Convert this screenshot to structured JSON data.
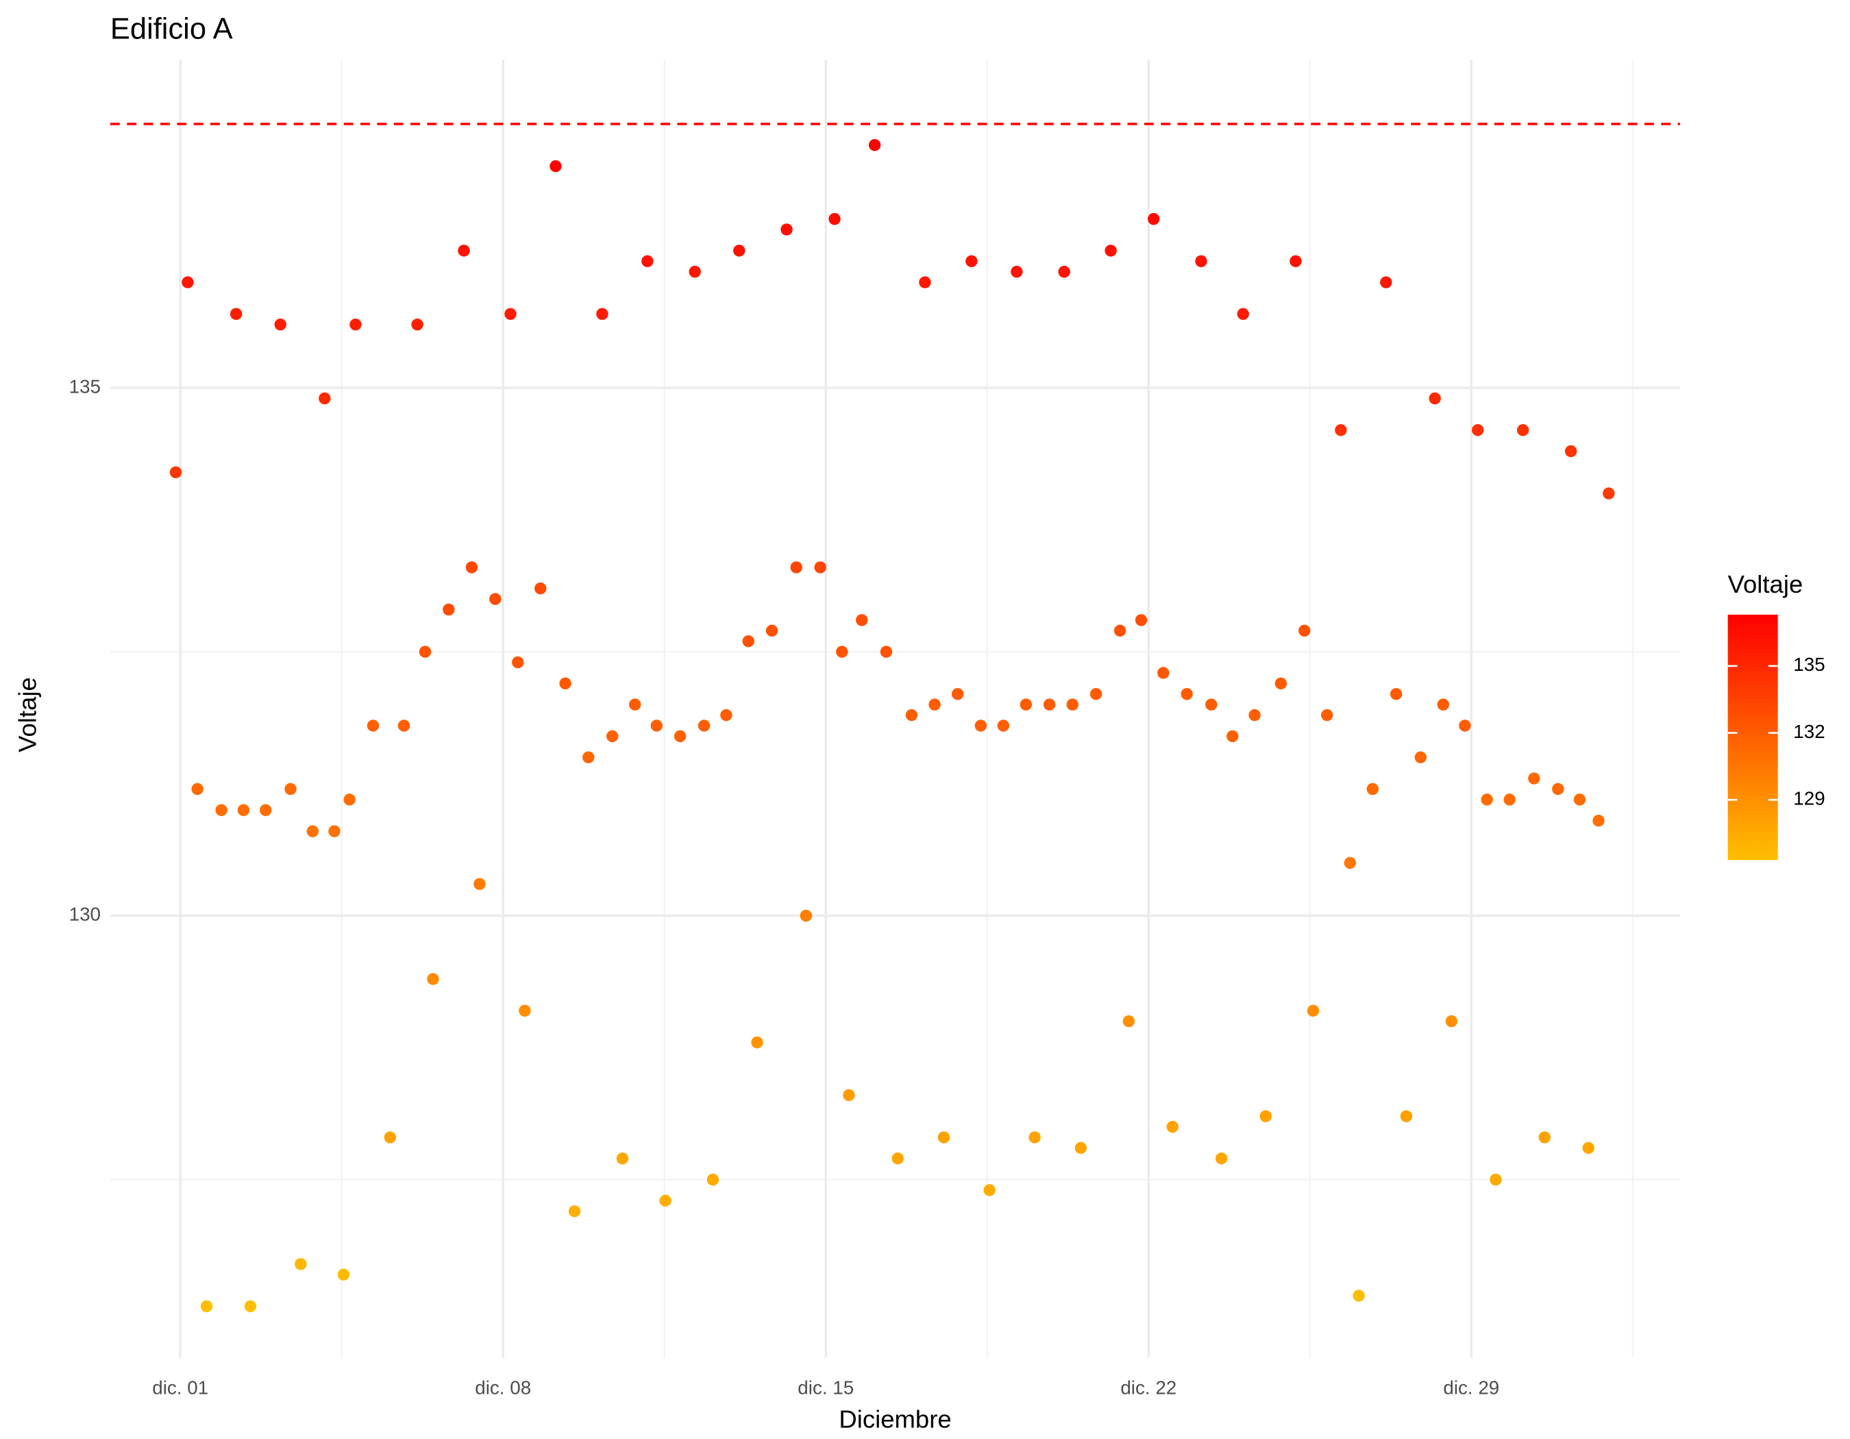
{
  "chart_data": {
    "type": "scatter",
    "title": "Edificio A",
    "x_label": "Diciembre",
    "y_label": "Voltaje",
    "legend_title": "Voltaje",
    "x": [
      0.9,
      1.16,
      1.37,
      1.57,
      1.89,
      2.21,
      2.37,
      2.52,
      2.85,
      3.17,
      3.39,
      3.61,
      3.87,
      4.13,
      4.34,
      4.54,
      4.67,
      4.8,
      5.18,
      5.55,
      5.85,
      6.14,
      6.31,
      6.48,
      6.82,
      7.15,
      7.32,
      7.49,
      7.83,
      8.16,
      8.32,
      8.47,
      8.81,
      9.14,
      9.35,
      9.55,
      9.85,
      10.15,
      10.37,
      10.59,
      10.86,
      11.13,
      11.33,
      11.52,
      11.84,
      12.16,
      12.36,
      12.55,
      12.84,
      13.12,
      13.32,
      13.51,
      13.83,
      14.15,
      14.36,
      14.57,
      14.88,
      15.19,
      15.35,
      15.5,
      15.78,
      16.06,
      16.31,
      16.56,
      16.86,
      17.15,
      17.36,
      17.56,
      17.86,
      18.16,
      18.36,
      18.55,
      18.85,
      19.14,
      19.34,
      19.53,
      19.85,
      20.17,
      20.35,
      20.53,
      20.86,
      21.18,
      21.38,
      21.57,
      21.84,
      22.11,
      22.32,
      22.52,
      22.83,
      23.14,
      23.36,
      23.58,
      23.82,
      24.05,
      24.3,
      24.54,
      24.87,
      25.19,
      25.38,
      25.57,
      25.87,
      26.17,
      26.37,
      26.56,
      26.86,
      27.15,
      27.37,
      27.59,
      27.9,
      28.21,
      28.39,
      28.57,
      28.86,
      29.14,
      29.34,
      29.53,
      29.83,
      30.12,
      30.36,
      30.59,
      30.88,
      31.16,
      31.35,
      31.54,
      31.76,
      31.98
    ],
    "values": [
      134.2,
      136.0,
      131.2,
      126.3,
      131.0,
      135.7,
      131.0,
      126.3,
      131.0,
      135.6,
      131.2,
      126.7,
      130.8,
      134.9,
      130.8,
      126.6,
      131.1,
      135.6,
      131.8,
      127.9,
      131.8,
      135.6,
      132.5,
      129.4,
      132.9,
      136.3,
      133.3,
      130.3,
      133.0,
      135.7,
      132.4,
      129.1,
      133.1,
      137.1,
      132.2,
      127.2,
      131.5,
      135.7,
      131.7,
      127.7,
      132.0,
      136.2,
      131.8,
      127.3,
      131.7,
      136.1,
      131.8,
      127.5,
      131.9,
      136.3,
      132.6,
      128.8,
      132.7,
      136.5,
      133.3,
      130.0,
      133.3,
      136.6,
      132.5,
      128.3,
      132.8,
      137.3,
      132.5,
      127.7,
      131.9,
      136.0,
      132.0,
      127.9,
      132.1,
      136.2,
      131.8,
      127.4,
      131.8,
      136.1,
      132.0,
      127.9,
      132.0,
      136.1,
      132.0,
      127.8,
      132.1,
      136.3,
      132.7,
      129.0,
      132.8,
      136.6,
      132.3,
      128.0,
      132.1,
      136.2,
      132.0,
      127.7,
      131.7,
      135.7,
      131.9,
      128.1,
      132.2,
      136.2,
      132.7,
      129.1,
      131.9,
      134.6,
      130.5,
      126.4,
      131.2,
      136.0,
      132.1,
      128.1,
      131.5,
      134.9,
      132.0,
      129.0,
      131.8,
      134.6,
      131.1,
      127.5,
      131.1,
      134.6,
      131.3,
      127.9,
      131.2,
      134.4,
      131.1,
      127.8,
      130.9,
      134.0
    ],
    "xlim": [
      -0.52,
      33.53
    ],
    "xticks": [
      {
        "value": 1,
        "label": "dic. 01"
      },
      {
        "value": 8,
        "label": "dic. 08"
      },
      {
        "value": 15,
        "label": "dic. 15"
      },
      {
        "value": 22,
        "label": "dic. 22"
      },
      {
        "value": 29,
        "label": "dic. 29"
      }
    ],
    "minor_xticks": [
      4.5,
      11.5,
      18.5,
      25.5,
      32.5
    ],
    "ylim": [
      125.81,
      138.11
    ],
    "yticks": [
      130,
      135
    ],
    "minor_yticks": [
      127.5,
      132.5
    ],
    "grid": true,
    "hline": {
      "value": 137.5,
      "color": "#FF0000",
      "dashed": true
    },
    "color_scale": {
      "low": "#FFBF00",
      "high": "#FF0000",
      "limits": [
        126.3,
        137.3
      ],
      "ticks": [
        129,
        132,
        135
      ]
    },
    "legend_position": "right"
  }
}
